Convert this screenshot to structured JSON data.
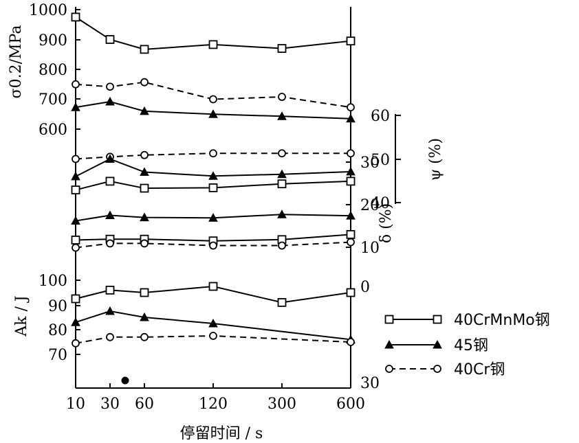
{
  "chart_data": {
    "type": "line",
    "categories": [
      "10",
      "30",
      "60",
      "120",
      "300",
      "600"
    ],
    "xlabel": "停留时间 / s",
    "x_positions": [
      0,
      0.5,
      1,
      2,
      3,
      4
    ],
    "legend": {
      "placement": "right",
      "entries": [
        {
          "label": "40CrMnMo钢",
          "marker": "square",
          "line": "solid"
        },
        {
          "label": "45钢",
          "marker": "triangle",
          "line": "solid"
        },
        {
          "label": "40Cr钢",
          "marker": "circle",
          "line": "dashed"
        }
      ]
    },
    "panels": [
      {
        "id": "sigma",
        "ylabel": "σ0.2/MPa",
        "ylim": [
          550,
          1000
        ],
        "yticks": [
          "1000",
          "900",
          "800",
          "700",
          "600"
        ],
        "series": [
          {
            "name": "40CrMnMo钢",
            "marker": "square",
            "x": [
              0,
              0.5,
              1,
              2,
              3,
              4
            ],
            "values": [
              975,
              900,
              867,
              883,
              870,
              895
            ]
          },
          {
            "name": "40Cr钢",
            "marker": "circle",
            "x": [
              0,
              0.5,
              1,
              2,
              3,
              4
            ],
            "values": [
              750,
              742,
              757,
              700,
              708,
              673
            ]
          },
          {
            "name": "45钢",
            "marker": "triangle",
            "x": [
              0,
              0.5,
              1,
              2,
              3,
              4
            ],
            "values": [
              673,
              692,
              660,
              650,
              643,
              635
            ]
          }
        ]
      },
      {
        "id": "psi",
        "ylabel": "ψ (%)",
        "ylim": [
          40,
          60
        ],
        "yticks": [
          "60",
          "50",
          "40"
        ],
        "series": [
          {
            "name": "40Cr钢",
            "marker": "circle",
            "x": [
              0,
              0.5,
              1,
              2,
              3,
              4
            ],
            "values": [
              50.0,
              50.5,
              50.9,
              51.3,
              51.3,
              51.3
            ]
          },
          {
            "name": "45钢",
            "marker": "triangle",
            "x": [
              0,
              0.5,
              1,
              2,
              3,
              4
            ],
            "values": [
              46.0,
              50.0,
              47.0,
              46.1,
              46.5,
              47.1
            ]
          },
          {
            "name": "40CrMnMo钢",
            "marker": "square",
            "x": [
              0,
              0.5,
              1,
              2,
              3,
              4
            ],
            "values": [
              42.9,
              44.9,
              43.3,
              43.4,
              44.3,
              44.9
            ]
          }
        ]
      },
      {
        "id": "delta",
        "ylabel": "δ (%)",
        "ylim": [
          10,
          30
        ],
        "yticks": [
          "30",
          "20",
          "10"
        ],
        "series": [
          {
            "name": "45钢",
            "marker": "triangle",
            "x": [
              0,
              0.5,
              1,
              2,
              3,
              4
            ],
            "values": [
              16.2,
              17.5,
              17.0,
              16.9,
              17.7,
              17.4
            ]
          },
          {
            "name": "40CrMnMo钢",
            "marker": "square",
            "x": [
              0,
              0.5,
              1,
              2,
              3,
              4
            ],
            "values": [
              11.7,
              11.9,
              11.9,
              11.5,
              11.8,
              13.0
            ]
          },
          {
            "name": "40Cr钢",
            "marker": "circle",
            "x": [
              0,
              0.5,
              1,
              2,
              3,
              4
            ],
            "values": [
              9.9,
              10.9,
              10.9,
              10.4,
              10.4,
              11.2
            ]
          }
        ]
      },
      {
        "id": "ak",
        "ylabel": "Ak / J",
        "ylim": [
          60,
          110
        ],
        "yticks": [
          "100",
          "90",
          "80",
          "70"
        ],
        "series": [
          {
            "name": "40CrMnMo钢",
            "marker": "square",
            "x": [
              0,
              0.5,
              1,
              2,
              3,
              4
            ],
            "values": [
              92.5,
              96,
              95,
              97.5,
              91,
              95
            ]
          },
          {
            "name": "45钢",
            "marker": "triangle",
            "x": [
              0,
              0.5,
              1,
              2,
              3,
              4
            ],
            "values": [
              83,
              87.5,
              85,
              82.5,
              null,
              76
            ]
          },
          {
            "name": "40Cr钢",
            "marker": "circle",
            "x": [
              0,
              0.5,
              1,
              2,
              3,
              4
            ],
            "values": [
              74.5,
              77,
              77,
              77.5,
              null,
              75
            ]
          }
        ]
      }
    ],
    "right_ticks_extra": [
      "0",
      "30"
    ],
    "stray_marker": {
      "panel": "ak",
      "x": 0.72,
      "y": 57
    }
  }
}
